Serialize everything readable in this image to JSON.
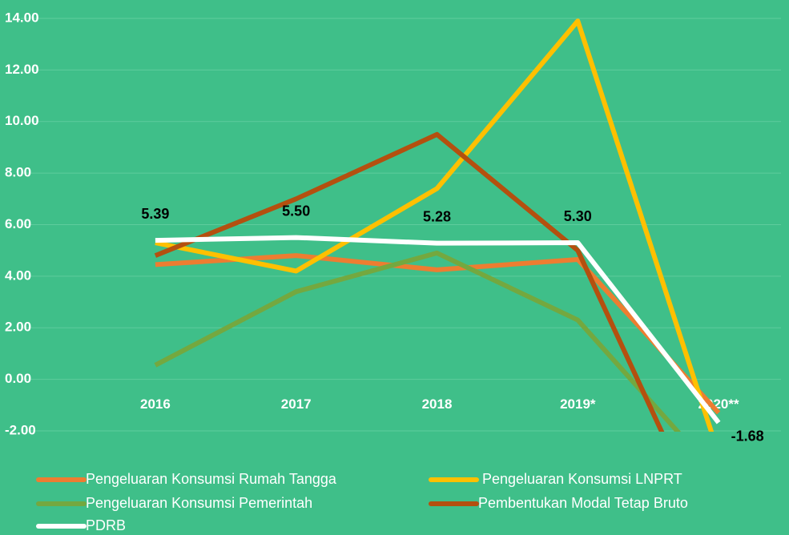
{
  "chart_data": {
    "type": "line",
    "categories": [
      "2016",
      "2017",
      "2018",
      "2019*",
      "2020**"
    ],
    "ylim": [
      -2,
      14
    ],
    "yticks": [
      {
        "value": -2,
        "label": "-2.00"
      },
      {
        "value": 0,
        "label": "0.00"
      },
      {
        "value": 2,
        "label": "2.00"
      },
      {
        "value": 4,
        "label": "4.00"
      },
      {
        "value": 6,
        "label": "6.00"
      },
      {
        "value": 8,
        "label": "8.00"
      },
      {
        "value": 10,
        "label": "10.00"
      },
      {
        "value": 12,
        "label": "12.00"
      },
      {
        "value": 14,
        "label": "14.00"
      }
    ],
    "grid": true,
    "legend": "bottom",
    "series": [
      {
        "name": "Pengeluaran Konsumsi Rumah Tangga",
        "color": "#ed7d31",
        "values": [
          4.45,
          4.8,
          4.25,
          4.65,
          -1.3
        ]
      },
      {
        "name": " Pengeluaran Konsumsi LNPRT",
        "color": "#ffc000",
        "values": [
          5.3,
          4.2,
          7.4,
          13.9,
          -2.9
        ]
      },
      {
        "name": "Pengeluaran Konsumsi Pemerintah",
        "color": "#74a83f",
        "values": [
          0.55,
          3.4,
          4.9,
          2.3,
          -3.8
        ]
      },
      {
        "name": "Pembentukan Modal Tetap Bruto",
        "color": "#b4500f",
        "values": [
          4.8,
          7.0,
          9.5,
          5.0,
          -6.8
        ]
      },
      {
        "name": "PDRB",
        "color": "#ffffff",
        "values": [
          5.39,
          5.5,
          5.28,
          5.3,
          -1.68
        ],
        "value_labels": [
          "5.39",
          "5.50",
          "5.28",
          "5.30",
          "-1.68"
        ]
      }
    ]
  }
}
